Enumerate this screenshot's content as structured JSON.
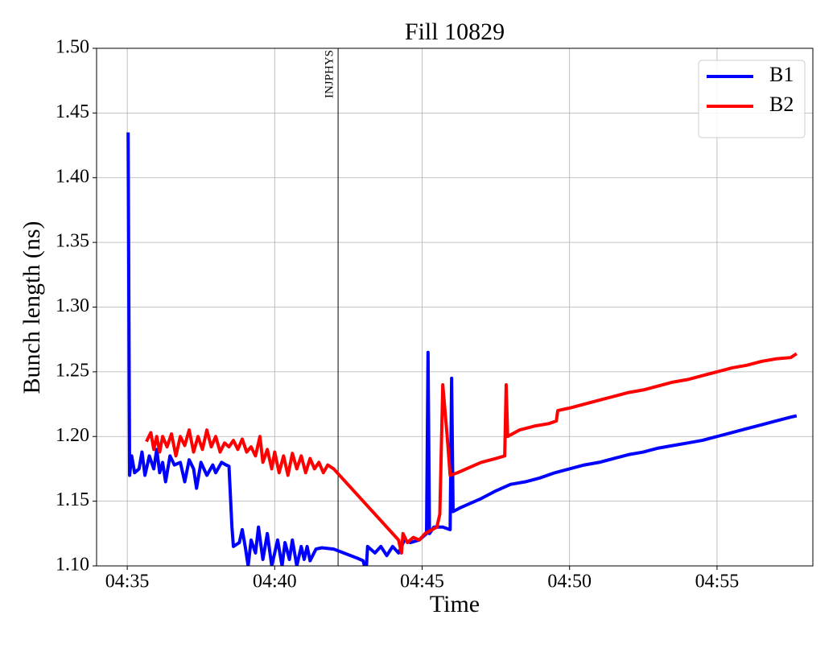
{
  "chart_data": {
    "type": "line",
    "title": "Fill 10829",
    "x_label": "Time",
    "y_label": "Bunch length (ns)",
    "xlim": [
      273.96,
      298.25
    ],
    "xticks": [
      {
        "value": 275,
        "label": "04:35"
      },
      {
        "value": 280,
        "label": "04:40"
      },
      {
        "value": 285,
        "label": "04:45"
      },
      {
        "value": 290,
        "label": "04:50"
      },
      {
        "value": 295,
        "label": "04:55"
      }
    ],
    "ylim": [
      1.1,
      1.5
    ],
    "yticks": [
      {
        "value": 1.1,
        "label": "1.10"
      },
      1.15,
      {
        "value": 1.2,
        "label": "1.20"
      },
      1.25,
      {
        "value": 1.3,
        "label": "1.30"
      },
      1.35,
      {
        "value": 1.4,
        "label": "1.40"
      },
      1.45,
      {
        "value": 1.5,
        "label": "1.50"
      }
    ],
    "grid": true,
    "legend": "upper right",
    "annotations": [
      {
        "text": "INJPHYS",
        "x": 282.15
      }
    ],
    "series": [
      {
        "name": "B1",
        "color": "#0000ff",
        "x": [
          275.03,
          275.08,
          275.15,
          275.25,
          275.4,
          275.5,
          275.6,
          275.75,
          275.9,
          276.0,
          276.1,
          276.2,
          276.3,
          276.45,
          276.6,
          276.8,
          276.95,
          277.1,
          277.25,
          277.35,
          277.5,
          277.7,
          277.9,
          278.0,
          278.2,
          278.35,
          278.45,
          278.55,
          278.6,
          278.8,
          278.9,
          279.0,
          279.1,
          279.2,
          279.35,
          279.45,
          279.6,
          279.75,
          279.9,
          280.0,
          280.1,
          280.25,
          280.35,
          280.5,
          280.6,
          280.75,
          280.9,
          281.0,
          281.1,
          281.2,
          281.4,
          281.6,
          282.0,
          282.8,
          283.0,
          283.1,
          283.15,
          283.4,
          283.6,
          283.8,
          284.0,
          284.2,
          284.4,
          284.6,
          284.9,
          285.15,
          285.2,
          285.25,
          285.4,
          285.7,
          285.95,
          286.0,
          286.05,
          286.3,
          286.6,
          287.0,
          287.5,
          288.0,
          288.5,
          289.0,
          289.5,
          290.0,
          290.5,
          291.0,
          291.5,
          292.0,
          292.5,
          293.0,
          293.5,
          294.0,
          294.5,
          295.0,
          295.5,
          296.0,
          296.5,
          297.0,
          297.5,
          297.7
        ],
        "values": [
          1.435,
          1.17,
          1.185,
          1.172,
          1.175,
          1.188,
          1.17,
          1.185,
          1.175,
          1.19,
          1.172,
          1.18,
          1.165,
          1.185,
          1.178,
          1.18,
          1.165,
          1.182,
          1.175,
          1.16,
          1.18,
          1.17,
          1.178,
          1.172,
          1.18,
          1.178,
          1.177,
          1.13,
          1.115,
          1.118,
          1.128,
          1.115,
          1.1,
          1.12,
          1.11,
          1.13,
          1.105,
          1.125,
          1.1,
          1.11,
          1.12,
          1.1,
          1.118,
          1.105,
          1.12,
          1.1,
          1.115,
          1.105,
          1.115,
          1.104,
          1.113,
          1.114,
          1.113,
          1.106,
          1.104,
          1.095,
          1.115,
          1.11,
          1.115,
          1.108,
          1.115,
          1.11,
          1.12,
          1.118,
          1.12,
          1.125,
          1.265,
          1.125,
          1.13,
          1.13,
          1.128,
          1.245,
          1.142,
          1.145,
          1.148,
          1.152,
          1.158,
          1.163,
          1.165,
          1.168,
          1.172,
          1.175,
          1.178,
          1.18,
          1.183,
          1.186,
          1.188,
          1.191,
          1.193,
          1.195,
          1.197,
          1.2,
          1.203,
          1.206,
          1.209,
          1.212,
          1.215,
          1.216
        ]
      },
      {
        "name": "B2",
        "color": "#ff0000",
        "x": [
          275.65,
          275.8,
          275.9,
          276.0,
          276.1,
          276.2,
          276.35,
          276.5,
          276.65,
          276.8,
          276.95,
          277.1,
          277.25,
          277.4,
          277.55,
          277.7,
          277.85,
          278.0,
          278.15,
          278.3,
          278.45,
          278.6,
          278.75,
          278.9,
          279.05,
          279.2,
          279.35,
          279.5,
          279.6,
          279.75,
          279.9,
          280.0,
          280.15,
          280.3,
          280.45,
          280.6,
          280.75,
          280.9,
          281.05,
          281.2,
          281.35,
          281.5,
          281.65,
          281.8,
          282.0,
          284.2,
          284.3,
          284.35,
          284.5,
          284.7,
          284.9,
          285.1,
          285.5,
          285.6,
          285.7,
          285.85,
          285.95,
          286.2,
          286.5,
          287.0,
          287.5,
          287.8,
          287.85,
          287.9,
          288.3,
          288.8,
          289.3,
          289.55,
          289.6,
          290.0,
          290.5,
          291.0,
          291.5,
          292.0,
          292.5,
          293.0,
          293.5,
          294.0,
          294.5,
          295.0,
          295.5,
          296.0,
          296.5,
          297.0,
          297.5,
          297.7
        ],
        "values": [
          1.196,
          1.203,
          1.19,
          1.2,
          1.188,
          1.2,
          1.192,
          1.202,
          1.185,
          1.2,
          1.193,
          1.205,
          1.188,
          1.2,
          1.19,
          1.205,
          1.192,
          1.2,
          1.188,
          1.195,
          1.192,
          1.197,
          1.19,
          1.198,
          1.188,
          1.192,
          1.185,
          1.2,
          1.18,
          1.19,
          1.175,
          1.188,
          1.172,
          1.185,
          1.17,
          1.187,
          1.175,
          1.185,
          1.172,
          1.183,
          1.175,
          1.18,
          1.172,
          1.178,
          1.175,
          1.12,
          1.11,
          1.125,
          1.118,
          1.122,
          1.12,
          1.125,
          1.13,
          1.14,
          1.24,
          1.2,
          1.17,
          1.172,
          1.175,
          1.18,
          1.183,
          1.185,
          1.24,
          1.2,
          1.205,
          1.208,
          1.21,
          1.212,
          1.22,
          1.222,
          1.225,
          1.228,
          1.231,
          1.234,
          1.236,
          1.239,
          1.242,
          1.244,
          1.247,
          1.25,
          1.253,
          1.255,
          1.258,
          1.26,
          1.261,
          1.264
        ]
      }
    ]
  }
}
